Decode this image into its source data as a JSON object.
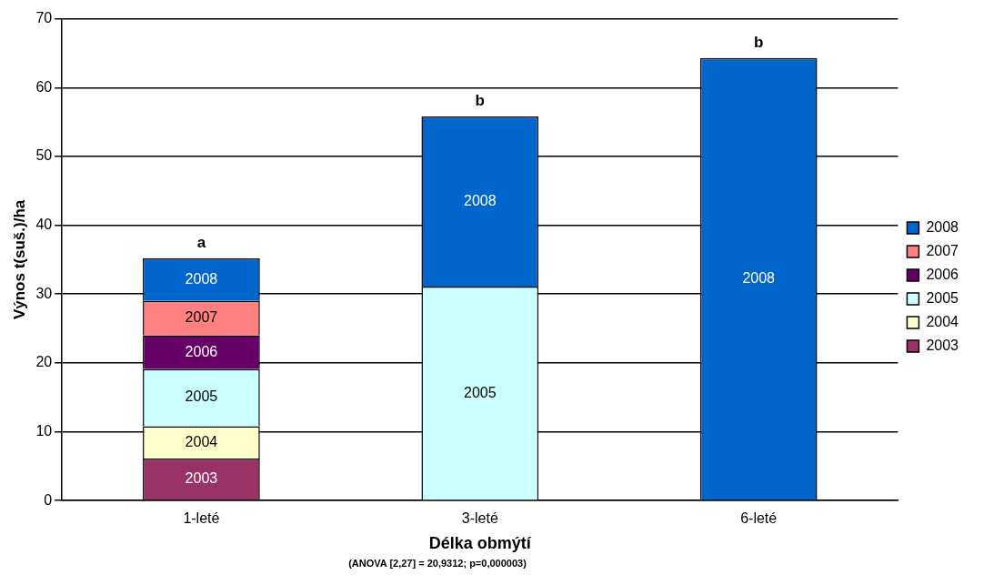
{
  "chart_data": {
    "type": "bar",
    "stacked": true,
    "xlabel": "Délka obmýtí",
    "ylabel": "Výnos t(suš.)/ha",
    "categories": [
      "1-leté",
      "3-leté",
      "6-leté"
    ],
    "series": [
      {
        "name": "2003",
        "color": "#993366",
        "values": [
          6.1,
          null,
          null
        ]
      },
      {
        "name": "2004",
        "color": "#ffffcc",
        "values": [
          4.7,
          null,
          null
        ]
      },
      {
        "name": "2005",
        "color": "#ccffff",
        "values": [
          8.3,
          31.1,
          null
        ]
      },
      {
        "name": "2006",
        "color": "#660066",
        "values": [
          4.9,
          null,
          null
        ]
      },
      {
        "name": "2007",
        "color": "#ff8080",
        "values": [
          5.0,
          null,
          null
        ]
      },
      {
        "name": "2008",
        "color": "#0066cc",
        "values": [
          6.2,
          24.7,
          64.3
        ]
      }
    ],
    "ylim": [
      0,
      70
    ],
    "yticks": [
      0,
      10,
      20,
      30,
      40,
      50,
      60,
      70
    ],
    "grid": "y",
    "legend": "right",
    "annotations": [
      {
        "text": "a",
        "x": "1-leté",
        "y": 35.2
      },
      {
        "text": "b",
        "x": "3-leté",
        "y": 55.8
      },
      {
        "text": "b",
        "x": "6-leté",
        "y": 64.3
      },
      "(ANOVA [2,27] = 20,9312; p=0,000003)"
    ]
  }
}
